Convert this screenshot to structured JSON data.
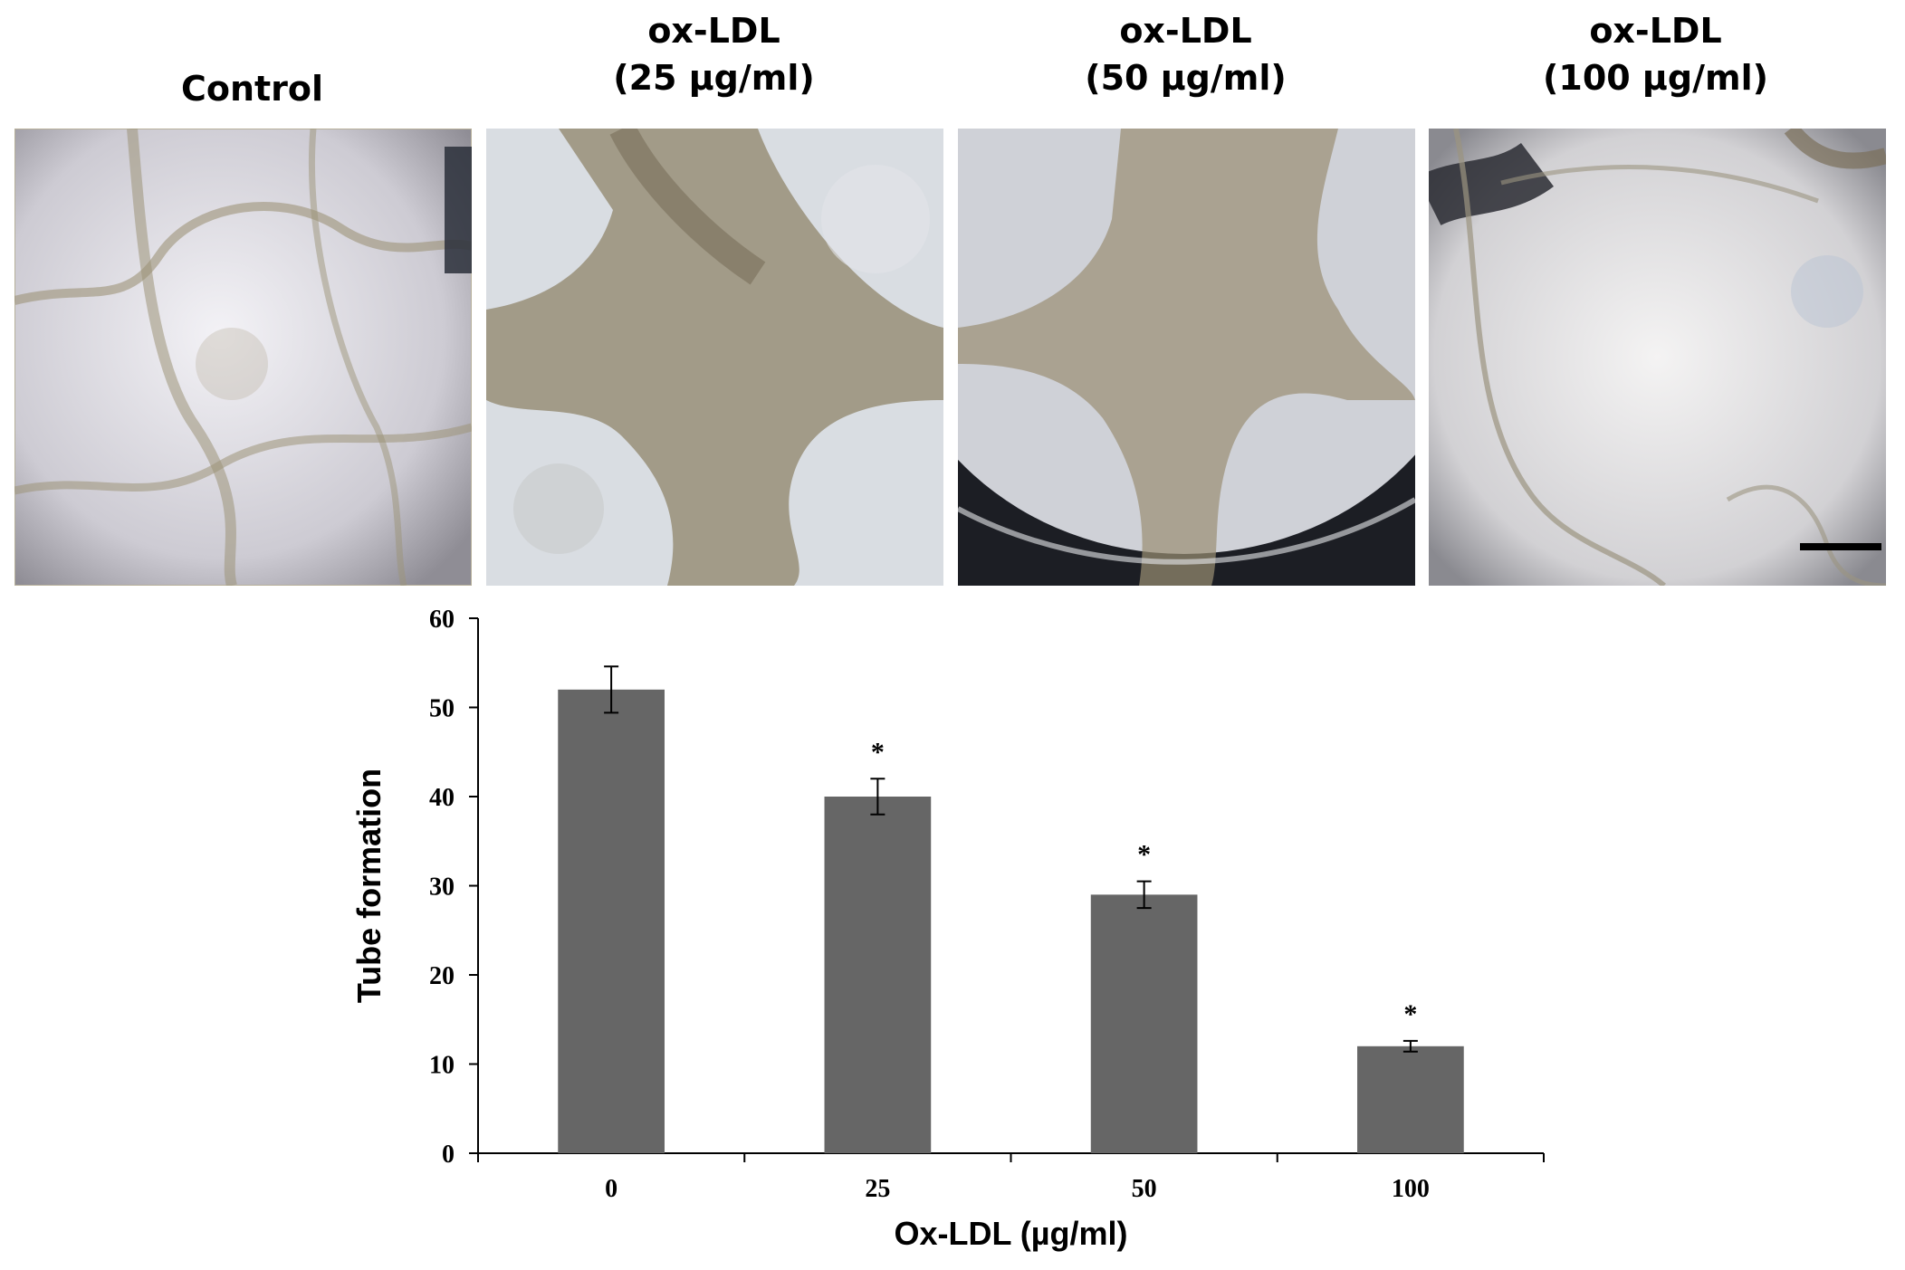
{
  "panels": [
    {
      "title": "Control"
    },
    {
      "title": "ox-LDL\n(25 µg/ml)"
    },
    {
      "title": "ox-LDL\n(50 µg/ml)"
    },
    {
      "title": "ox-LDL\n(100 µg/ml)"
    }
  ],
  "chart_data": {
    "type": "bar",
    "categories": [
      "0",
      "25",
      "50",
      "100"
    ],
    "values": [
      52,
      40,
      29,
      12
    ],
    "errors": [
      2.6,
      2.0,
      1.5,
      0.6
    ],
    "significance": [
      "",
      "*",
      "*",
      "*"
    ],
    "xlabel": "Ox-LDL (µg/ml)",
    "ylabel": "Tube formation",
    "ylim": [
      0,
      60
    ],
    "yticks": [
      0,
      10,
      20,
      30,
      40,
      50,
      60
    ],
    "bar_color": "#666666",
    "grid": false
  }
}
